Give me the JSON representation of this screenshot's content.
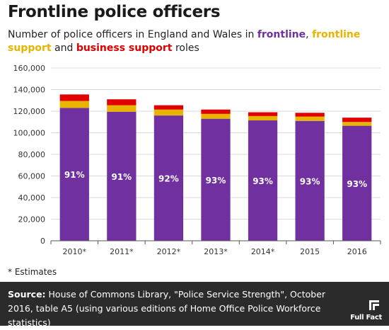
{
  "header": {
    "title": "Frontline police officers",
    "subtitle_prefix": "Number of police officers in England and Wales in ",
    "subtitle_frontline": "frontline",
    "subtitle_comma": ", ",
    "subtitle_fsupport": "frontline support",
    "subtitle_and": " and ",
    "subtitle_bsupport": "business support",
    "subtitle_suffix": " roles"
  },
  "colors": {
    "frontline": "#7030a0",
    "frontline_support": "#e8b400",
    "business_support": "#e00000"
  },
  "chart_data": {
    "type": "bar",
    "stacked": true,
    "categories": [
      "2010*",
      "2011*",
      "2012*",
      "2013*",
      "2014*",
      "2015",
      "2016"
    ],
    "series": [
      {
        "name": "frontline",
        "values": [
          123000,
          119500,
          116000,
          113000,
          111500,
          111000,
          106500
        ]
      },
      {
        "name": "frontline support",
        "values": [
          6500,
          6000,
          5500,
          4500,
          4000,
          4000,
          3500
        ]
      },
      {
        "name": "business support",
        "values": [
          6000,
          5500,
          4000,
          4000,
          3500,
          3500,
          4000
        ]
      }
    ],
    "data_labels": [
      "91%",
      "91%",
      "92%",
      "93%",
      "93%",
      "93%",
      "93%"
    ],
    "ylim": [
      0,
      160000
    ],
    "yticks": [
      0,
      20000,
      40000,
      60000,
      80000,
      100000,
      120000,
      140000,
      160000
    ],
    "ytick_labels": [
      "0",
      "20,000",
      "40,000",
      "60,000",
      "80,000",
      "100,000",
      "120,000",
      "140,000",
      "160,000"
    ],
    "grid": true,
    "xlabel": "",
    "ylabel": ""
  },
  "footnote": "* Estimates",
  "footer": {
    "source_label": "Source:",
    "source_text": " House of Commons Library, \"Police Service Strength\", October 2016, table A5 (using various editions of Home Office Police Workforce statistics)",
    "logo_text": "Full Fact"
  }
}
